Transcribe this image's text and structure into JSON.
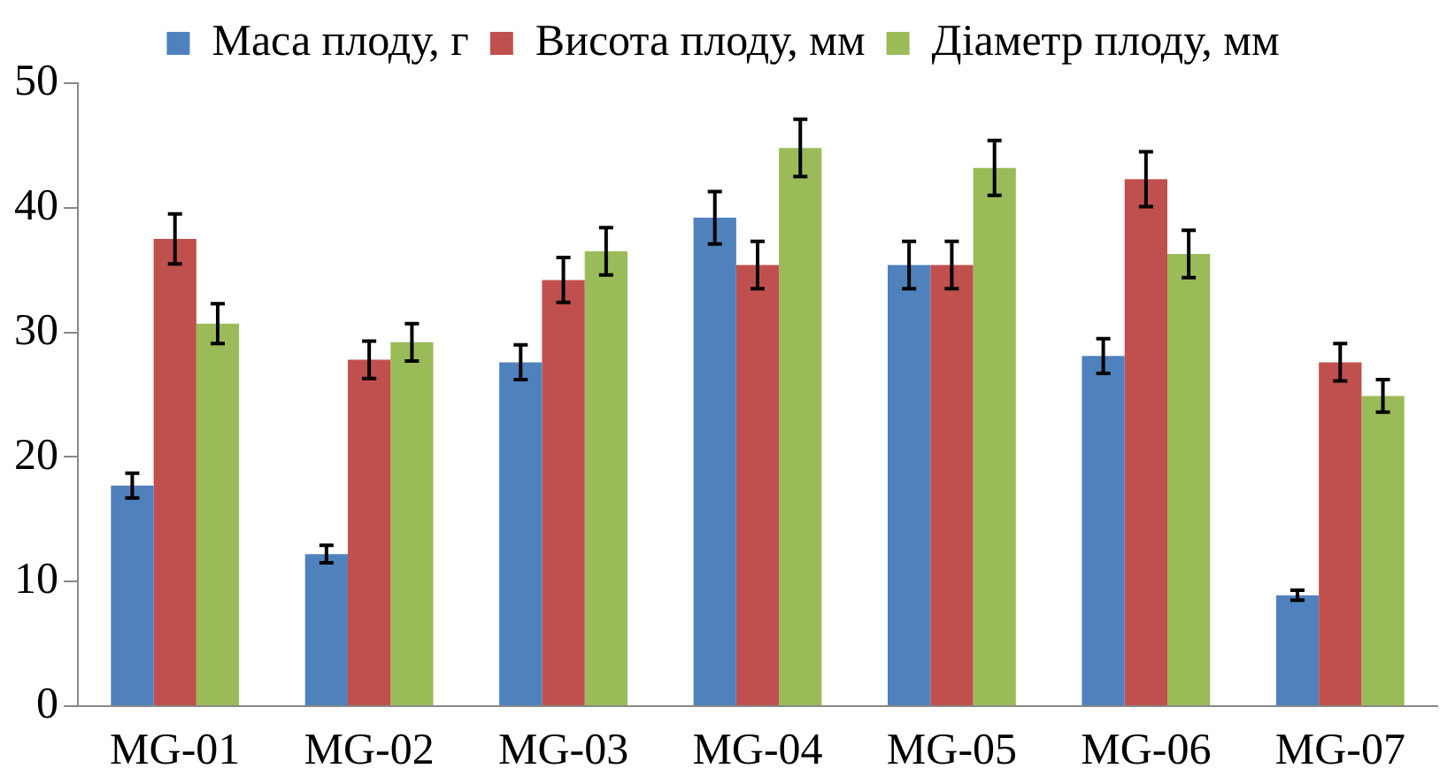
{
  "chart_data": {
    "type": "bar",
    "categories": [
      "MG-01",
      "MG-02",
      "MG-03",
      "MG-04",
      "MG-05",
      "MG-06",
      "MG-07"
    ],
    "series": [
      {
        "name": "Маса плоду, г",
        "color": "#4f81bd",
        "values": [
          17.7,
          12.2,
          27.6,
          39.2,
          35.4,
          28.1,
          8.9
        ],
        "errors": [
          1.0,
          0.7,
          1.4,
          2.1,
          1.9,
          1.4,
          0.4
        ]
      },
      {
        "name": "Висота плоду, мм",
        "color": "#c0504d",
        "values": [
          37.5,
          27.8,
          34.2,
          35.4,
          35.4,
          42.3,
          27.6
        ],
        "errors": [
          2.0,
          1.5,
          1.8,
          1.9,
          1.9,
          2.2,
          1.5
        ]
      },
      {
        "name": "Діаметр плоду, мм",
        "color": "#9bbb59",
        "values": [
          30.7,
          29.2,
          36.5,
          44.8,
          43.2,
          36.3,
          24.9
        ],
        "errors": [
          1.6,
          1.5,
          1.9,
          2.3,
          2.2,
          1.9,
          1.3
        ]
      }
    ],
    "ylim": [
      0,
      50
    ],
    "yticks": [
      0,
      10,
      20,
      30,
      40,
      50
    ],
    "grid": false,
    "legend": "top"
  }
}
